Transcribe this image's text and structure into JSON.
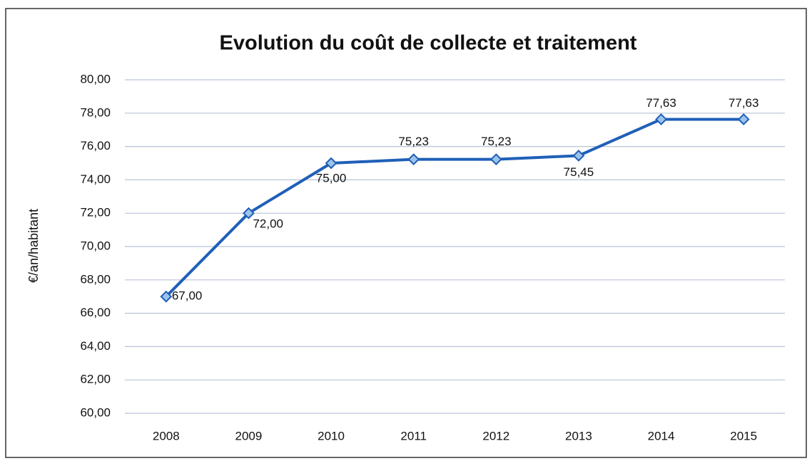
{
  "chart_data": {
    "type": "line",
    "title": "Evolution du coût de collecte et traitement",
    "y_label": "€/an/habitant",
    "categories": [
      "2008",
      "2009",
      "2010",
      "2011",
      "2012",
      "2013",
      "2014",
      "2015"
    ],
    "values": [
      67,
      72,
      75,
      75.23,
      75.23,
      75.45,
      77.63,
      77.63
    ],
    "value_labels": [
      "67,00",
      "72,00",
      "75,00",
      "75,23",
      "75,23",
      "75,45",
      "77,63",
      "77,63"
    ],
    "color": "#1f5fb8",
    "ylim": [
      60,
      80
    ],
    "yticks": [
      {
        "value": 60,
        "label": "60,00"
      },
      {
        "value": 62,
        "label": "62,00"
      },
      {
        "value": 64,
        "label": "64,00"
      },
      {
        "value": 66,
        "label": "66,00"
      },
      {
        "value": 68,
        "label": "68,00"
      },
      {
        "value": 70,
        "label": "70,00"
      },
      {
        "value": 72,
        "label": "72,00"
      },
      {
        "value": 74,
        "label": "74,00"
      },
      {
        "value": 76,
        "label": "76,00"
      },
      {
        "value": 78,
        "label": "78,00"
      },
      {
        "value": 80,
        "label": "80,00"
      }
    ],
    "grid": true
  }
}
